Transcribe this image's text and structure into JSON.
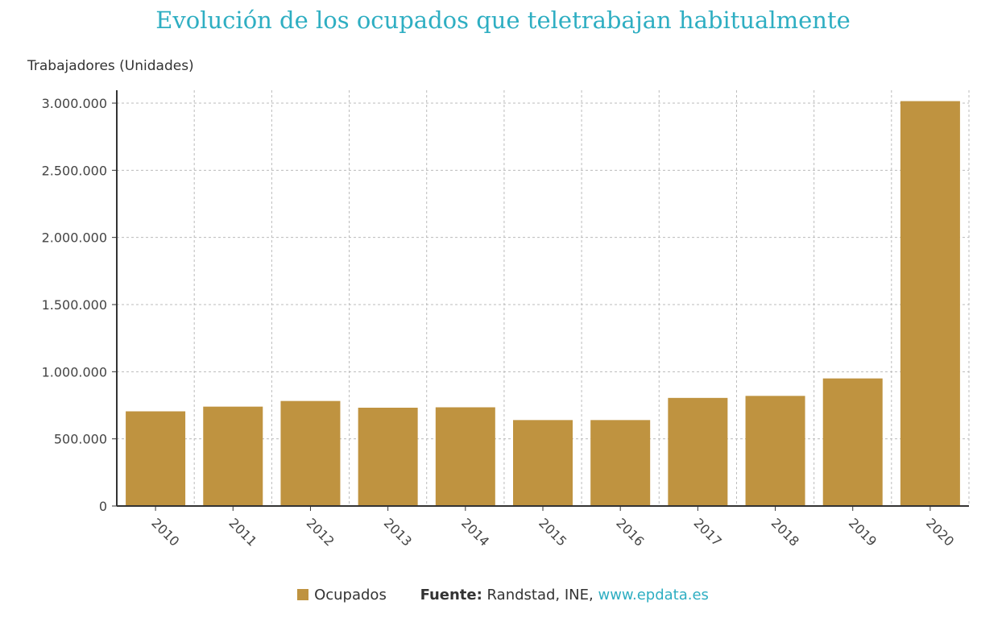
{
  "chart_data": {
    "type": "bar",
    "title": "Evolución de los ocupados que teletrabajan habitualmente",
    "ylabel": "Trabajadores (Unidades)",
    "xlabel": "",
    "categories": [
      "2010",
      "2011",
      "2012",
      "2013",
      "2014",
      "2015",
      "2016",
      "2017",
      "2018",
      "2019",
      "2020"
    ],
    "series": [
      {
        "name": "Ocupados",
        "color": "#bf9340",
        "values": [
          705000,
          740000,
          782000,
          732000,
          735000,
          640000,
          640000,
          805000,
          820000,
          950000,
          3015000
        ]
      }
    ],
    "ylim": [
      0,
      3000000
    ],
    "yticks": [
      0,
      500000,
      1000000,
      1500000,
      2000000,
      2500000,
      3000000
    ],
    "ytick_labels": [
      "0",
      "500.000",
      "1.000.000",
      "1.500.000",
      "2.000.000",
      "2.500.000",
      "3.000.000"
    ],
    "grid": true,
    "legend_position": "bottom"
  },
  "footer": {
    "legend_label": "Ocupados",
    "source_prefix": "Fuente:",
    "source_text": "Randstad, INE,",
    "source_link": "www.epdata.es"
  }
}
